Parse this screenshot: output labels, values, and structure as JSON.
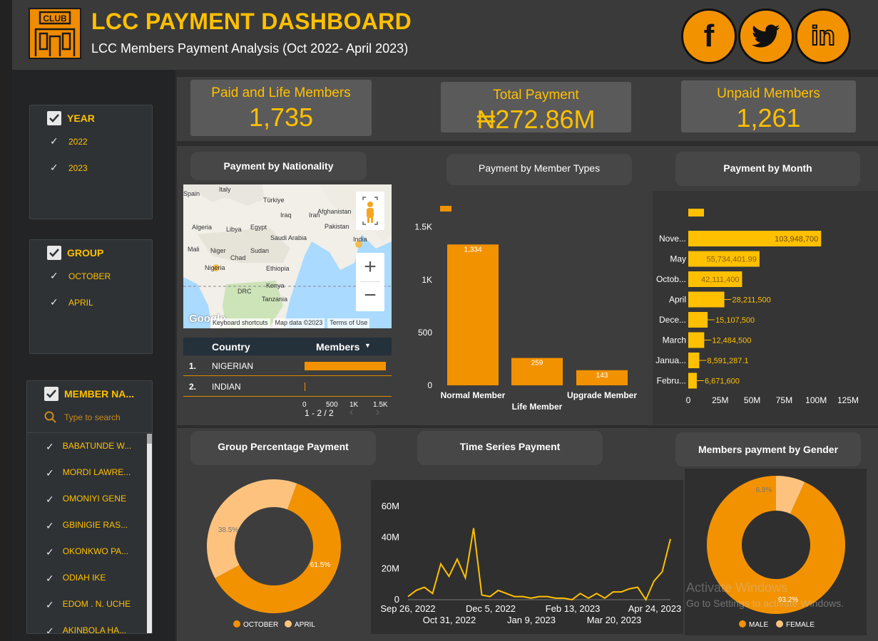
{
  "header": {
    "title": "LCC PAYMENT DASHBOARD",
    "subtitle": "LCC Members Payment Analysis (Oct 2022- April 2023)",
    "logo_text": "CLUB",
    "social": [
      "facebook-icon",
      "twitter-icon",
      "linkedin-icon"
    ]
  },
  "kpis": {
    "paid_life": {
      "label": "Paid and Life Members",
      "value": "1,735"
    },
    "total_payment": {
      "label": "Total Payment",
      "value": "₦272.86M"
    },
    "unpaid": {
      "label": "Unpaid Members",
      "value": "1,261"
    }
  },
  "filters": {
    "year": {
      "title": "YEAR",
      "options": [
        "2022",
        "2023"
      ]
    },
    "group": {
      "title": "GROUP",
      "options": [
        "OCTOBER",
        "APRIL"
      ]
    },
    "member_name": {
      "title": "MEMBER NA...",
      "search_placeholder": "Type to search",
      "options": [
        "BABATUNDE W...",
        "MORDI LAWRE...",
        "OMONIYI GENE",
        "GBINIGIE RAS...",
        "OKONKWO PA...",
        "ODIAH IKE",
        "EDOM . N. UCHE",
        "AKINBOLA HA..."
      ]
    }
  },
  "sections": {
    "nationality": "Payment by Nationality",
    "member_types": "Payment by Member Types",
    "month": "Payment by Month",
    "group_pct": "Group Percentage Payment",
    "time_series": "Time Series Payment",
    "gender": "Members payment by Gender"
  },
  "map": {
    "labels": [
      "Spain",
      "Italy",
      "Türkiye",
      "Afghanistan",
      "Algeria",
      "Libya",
      "Egypt",
      "Iraq",
      "Iran",
      "Pakistan",
      "Saudi Arabia",
      "India",
      "Mali",
      "Niger",
      "Chad",
      "Sudan",
      "Nigeria",
      "Ethiopia",
      "DRC",
      "Kenya",
      "Tanzania"
    ],
    "footer": [
      "Keyboard shortcuts",
      "Map data ©2023",
      "Terms of Use"
    ],
    "brand": "Google",
    "zoom_in": "+",
    "zoom_out": "−"
  },
  "country_table": {
    "headers": [
      "Country",
      "Members"
    ],
    "rows": [
      {
        "rank": "1.",
        "country": "NIGERIAN",
        "fraction": 1.0
      },
      {
        "rank": "2.",
        "country": "INDIAN",
        "fraction": 0.002
      }
    ],
    "axis_ticks": [
      "0",
      "500",
      "1K",
      "1.5K"
    ],
    "pagination": "1 - 2 / 2"
  },
  "colors": {
    "accent": "#f39200",
    "gold": "#ffc000",
    "light_orange": "#fdc37e"
  },
  "chart_data": [
    {
      "type": "bar",
      "title": "Payment by Member Types",
      "categories": [
        "Normal Member",
        "Life Member",
        "Upgrade Member"
      ],
      "values": [
        1334,
        259,
        143
      ],
      "value_labels": [
        "1,334",
        "259",
        "143"
      ],
      "ylim": [
        0,
        1700
      ],
      "ytick_values": [
        0,
        500,
        1000,
        1500
      ],
      "ytick_labels": [
        "0",
        "500",
        "1K",
        "1.5K"
      ]
    },
    {
      "type": "bar",
      "orientation": "horizontal",
      "title": "Payment by Month",
      "categories": [
        "Nove...",
        "May",
        "Octob...",
        "April",
        "Dece...",
        "March",
        "Janua...",
        "Febru..."
      ],
      "values": [
        103948700,
        55734401.99,
        42111400,
        28211500,
        15107500,
        12484500,
        8591287.1,
        6671600
      ],
      "value_labels": [
        "103,948,700",
        "55,734,401.99",
        "42,111,400",
        "28,211,500",
        "15,107,500",
        "12,484,500",
        "8,591,287.1",
        "6,671,600"
      ],
      "xlim": [
        0,
        125000000
      ],
      "xtick_values": [
        0,
        25000000,
        50000000,
        75000000,
        100000000,
        125000000
      ],
      "xtick_labels": [
        "0",
        "25M",
        "50M",
        "75M",
        "100M",
        "125M"
      ]
    },
    {
      "type": "pie",
      "title": "Group Percentage Payment",
      "labels": [
        "OCTOBER",
        "APRIL"
      ],
      "values": [
        61.5,
        38.5
      ],
      "value_labels": [
        "61.5%",
        "38.5%"
      ],
      "colors": [
        "#f39200",
        "#fdc37e"
      ],
      "legend": "bottom"
    },
    {
      "type": "line",
      "title": "Time Series Payment",
      "x_tick_labels_row1": [
        "Sep 26, 2022",
        "Dec 5, 2022",
        "Feb 13, 2023",
        "Apr 24, 2023"
      ],
      "x_tick_labels_row2": [
        "Oct 31, 2022",
        "Jan 9, 2023",
        "Mar 20, 2023"
      ],
      "ytick_labels": [
        "0",
        "20M",
        "40M",
        "60M"
      ],
      "ytick_values": [
        0,
        20,
        40,
        60
      ],
      "ylim": [
        0,
        65
      ],
      "yunit": "M",
      "values": [
        2,
        6,
        8,
        4,
        23,
        15,
        26,
        14,
        46,
        3,
        2,
        6,
        4,
        2,
        2,
        1,
        2,
        2,
        1,
        1,
        0,
        4,
        1,
        4,
        1,
        5,
        5,
        7,
        8,
        0,
        12,
        18,
        39
      ],
      "color": "#ffc000"
    },
    {
      "type": "pie",
      "title": "Members payment by Gender",
      "labels": [
        "MALE",
        "FEMALE"
      ],
      "values": [
        93.2,
        6.8
      ],
      "value_labels": [
        "93.2%",
        "6.8%"
      ],
      "colors": [
        "#f39200",
        "#fdc37e"
      ],
      "legend": "bottom"
    }
  ],
  "watermark": {
    "line1": "Activate Windows",
    "line2": "Go to Settings to activate Windows."
  }
}
